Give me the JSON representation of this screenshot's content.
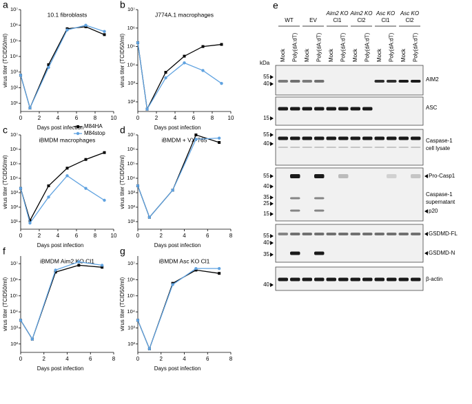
{
  "chart_data": [
    {
      "type": "line",
      "panel": "a",
      "title": "10.1 fibroblasts",
      "x_label": "Days post infection",
      "y_label": "virus titer (TCID50/ml)",
      "log_y": true,
      "xlim": [
        0,
        10
      ],
      "xticks": [
        0,
        2,
        4,
        6,
        8,
        10
      ],
      "ylim": [
        3,
        10000000
      ],
      "yticks": [
        {
          "value": 10,
          "label": "10¹"
        },
        {
          "value": 100,
          "label": "10²"
        },
        {
          "value": 1000,
          "label": "10³"
        },
        {
          "value": 10000,
          "label": "10⁴"
        },
        {
          "value": 100000,
          "label": "10⁵"
        },
        {
          "value": 1000000,
          "label": "10⁶"
        },
        {
          "value": 10000000,
          "label": "10⁷"
        }
      ],
      "legend": "lower-right",
      "x": [
        0,
        1,
        3,
        5,
        7,
        9
      ],
      "series": [
        {
          "name": "M84HA",
          "color": "#000000",
          "marker": "square",
          "values": [
            630,
            5,
            3000,
            600000,
            800000,
            250000
          ]
        },
        {
          "name": "M84stop",
          "color": "#5fa2e0",
          "marker": "circle",
          "values": [
            630,
            5,
            2000,
            500000,
            1000000,
            400000
          ]
        }
      ]
    },
    {
      "type": "line",
      "panel": "b",
      "title": "J774A.1 macrophages",
      "x_label": "Days post infection",
      "y_label": "virus titer (TCID50/ml)",
      "log_y": true,
      "xlim": [
        0,
        10
      ],
      "xticks": [
        0,
        2,
        4,
        6,
        8,
        10
      ],
      "ylim": [
        30,
        10000000
      ],
      "yticks": [
        {
          "value": 100,
          "label": "10²"
        },
        {
          "value": 1000,
          "label": "10³"
        },
        {
          "value": 10000,
          "label": "10⁴"
        },
        {
          "value": 100000,
          "label": "10⁵"
        },
        {
          "value": 1000000,
          "label": "10⁶"
        },
        {
          "value": 10000000,
          "label": "10⁷"
        }
      ],
      "x": [
        0,
        1,
        3,
        5,
        7,
        9
      ],
      "series": [
        {
          "color": "#000000",
          "marker": "square",
          "values": [
            160000,
            40,
            4000,
            30000,
            100000,
            130000
          ]
        },
        {
          "color": "#5fa2e0",
          "marker": "circle",
          "values": [
            160000,
            40,
            2000,
            13000,
            5000,
            1000
          ]
        }
      ]
    },
    {
      "type": "line",
      "panel": "c",
      "title": "iBMDM macrophages",
      "x_label": "Days post infection",
      "y_label": "virus titer (TCID50/ml)",
      "log_y": true,
      "xlim": [
        0,
        10
      ],
      "xticks": [
        0,
        2,
        4,
        6,
        8,
        10
      ],
      "ylim": [
        3,
        10000000
      ],
      "yticks": [
        {
          "value": 10,
          "label": "10¹"
        },
        {
          "value": 100,
          "label": "10²"
        },
        {
          "value": 1000,
          "label": "10³"
        },
        {
          "value": 10000,
          "label": "10⁴"
        },
        {
          "value": 100000,
          "label": "10⁵"
        },
        {
          "value": 1000000,
          "label": "10⁶"
        },
        {
          "value": 10000000,
          "label": "10⁷"
        }
      ],
      "x": [
        0,
        1,
        3,
        5,
        7,
        9
      ],
      "series": [
        {
          "color": "#000000",
          "marker": "square",
          "values": [
            2000,
            12,
            3000,
            50000,
            200000,
            600000
          ]
        },
        {
          "color": "#5fa2e0",
          "marker": "circle",
          "values": [
            2000,
            8,
            500,
            15000,
            2000,
            300
          ]
        }
      ]
    },
    {
      "type": "line",
      "panel": "d",
      "title": "iBMDM + VX-765",
      "x_label": "Days post infection",
      "y_label": "virus titer (TCID50/ml)",
      "log_y": true,
      "xlim": [
        0,
        8
      ],
      "xticks": [
        0,
        2,
        4,
        6,
        8
      ],
      "ylim": [
        3,
        10000000
      ],
      "yticks": [
        {
          "value": 10,
          "label": "10¹"
        },
        {
          "value": 100,
          "label": "10²"
        },
        {
          "value": 1000,
          "label": "10³"
        },
        {
          "value": 10000,
          "label": "10⁴"
        },
        {
          "value": 100000,
          "label": "10⁵"
        },
        {
          "value": 1000000,
          "label": "10⁶"
        },
        {
          "value": 10000000,
          "label": "10⁷"
        }
      ],
      "x": [
        0,
        1,
        3,
        5,
        7
      ],
      "series": [
        {
          "color": "#000000",
          "marker": "square",
          "values": [
            3000,
            20,
            1500,
            10000000,
            3000000
          ]
        },
        {
          "color": "#5fa2e0",
          "marker": "circle",
          "values": [
            3000,
            20,
            1500,
            5000000,
            6000000
          ]
        }
      ]
    },
    {
      "type": "line",
      "panel": "f",
      "title": "iBMDM Aim2 KO Cl1",
      "x_label": "Days post infection",
      "y_label": "virus titer (TCID50/ml)",
      "log_y": true,
      "xlim": [
        0,
        8
      ],
      "xticks": [
        0,
        2,
        4,
        6,
        8
      ],
      "ylim": [
        30,
        30000000
      ],
      "yticks": [
        {
          "value": 100,
          "label": "10²"
        },
        {
          "value": 1000,
          "label": "10³"
        },
        {
          "value": 10000,
          "label": "10⁴"
        },
        {
          "value": 100000,
          "label": "10⁵"
        },
        {
          "value": 1000000,
          "label": "10⁶"
        },
        {
          "value": 10000000,
          "label": "10⁷"
        }
      ],
      "x": [
        0,
        1,
        3,
        5,
        7
      ],
      "series": [
        {
          "color": "#000000",
          "marker": "square",
          "values": [
            3000,
            200,
            3000000,
            8000000,
            6000000
          ]
        },
        {
          "color": "#5fa2e0",
          "marker": "circle",
          "values": [
            3000,
            200,
            4000000,
            13000000,
            8000000
          ]
        }
      ]
    },
    {
      "type": "line",
      "panel": "g",
      "title": "iBMDM Asc KO Cl1",
      "x_label": "Days post infection",
      "y_label": "virus titer (TCID50/ml)",
      "log_y": true,
      "xlim": [
        0,
        8
      ],
      "xticks": [
        0,
        2,
        4,
        6,
        8
      ],
      "ylim": [
        30,
        30000000
      ],
      "yticks": [
        {
          "value": 100,
          "label": "10²"
        },
        {
          "value": 1000,
          "label": "10³"
        },
        {
          "value": 10000,
          "label": "10⁴"
        },
        {
          "value": 100000,
          "label": "10⁵"
        },
        {
          "value": 1000000,
          "label": "10⁶"
        },
        {
          "value": 10000000,
          "label": "10⁷"
        }
      ],
      "x": [
        0,
        1,
        3,
        5,
        7
      ],
      "series": [
        {
          "color": "#000000",
          "marker": "square",
          "values": [
            3000,
            50,
            600000,
            4000000,
            2500000
          ]
        },
        {
          "color": "#5fa2e0",
          "marker": "circle",
          "values": [
            3000,
            50,
            500000,
            5000000,
            5000000
          ]
        }
      ]
    }
  ],
  "blot": {
    "panel": "e",
    "unit": "kDa",
    "groups": [
      {
        "name": "WT"
      },
      {
        "name": "EV"
      },
      {
        "name": "Aim2 KO",
        "clone": "Cl1"
      },
      {
        "name": "Aim2 KO",
        "clone": "Cl2"
      },
      {
        "name": "Asc KO",
        "clone": "Cl1"
      },
      {
        "name": "Asc KO",
        "clone": "Cl2"
      }
    ],
    "lanes": [
      "Mock",
      "Poly(dA:dT)",
      "Mock",
      "Poly(dA:dT)",
      "Mock",
      "Poly(dA:dT)",
      "Mock",
      "Poly(dA:dT)",
      "Mock",
      "Poly(dA:dT)",
      "Mock",
      "Poly(dA:dT)"
    ],
    "blots": [
      {
        "markers": [
          "55",
          "40"
        ],
        "labels": [
          "AIM2"
        ]
      },
      {
        "markers": [
          "15"
        ],
        "labels": [
          "ASC"
        ]
      },
      {
        "markers": [
          "55",
          "40"
        ],
        "labels": [
          "Caspase-1",
          "cell lysate"
        ]
      },
      {
        "markers": [
          "55",
          "40",
          "35",
          "25",
          "15"
        ],
        "labels": [
          "Pro-Casp1",
          "Caspase-1",
          "supernatant",
          "p20"
        ]
      },
      {
        "markers": [
          "55",
          "40",
          "35"
        ],
        "labels": [
          "GSDMD-FL",
          "GSDMD-N"
        ]
      },
      {
        "markers": [
          "40"
        ],
        "labels": [
          "β-actin"
        ]
      }
    ]
  }
}
